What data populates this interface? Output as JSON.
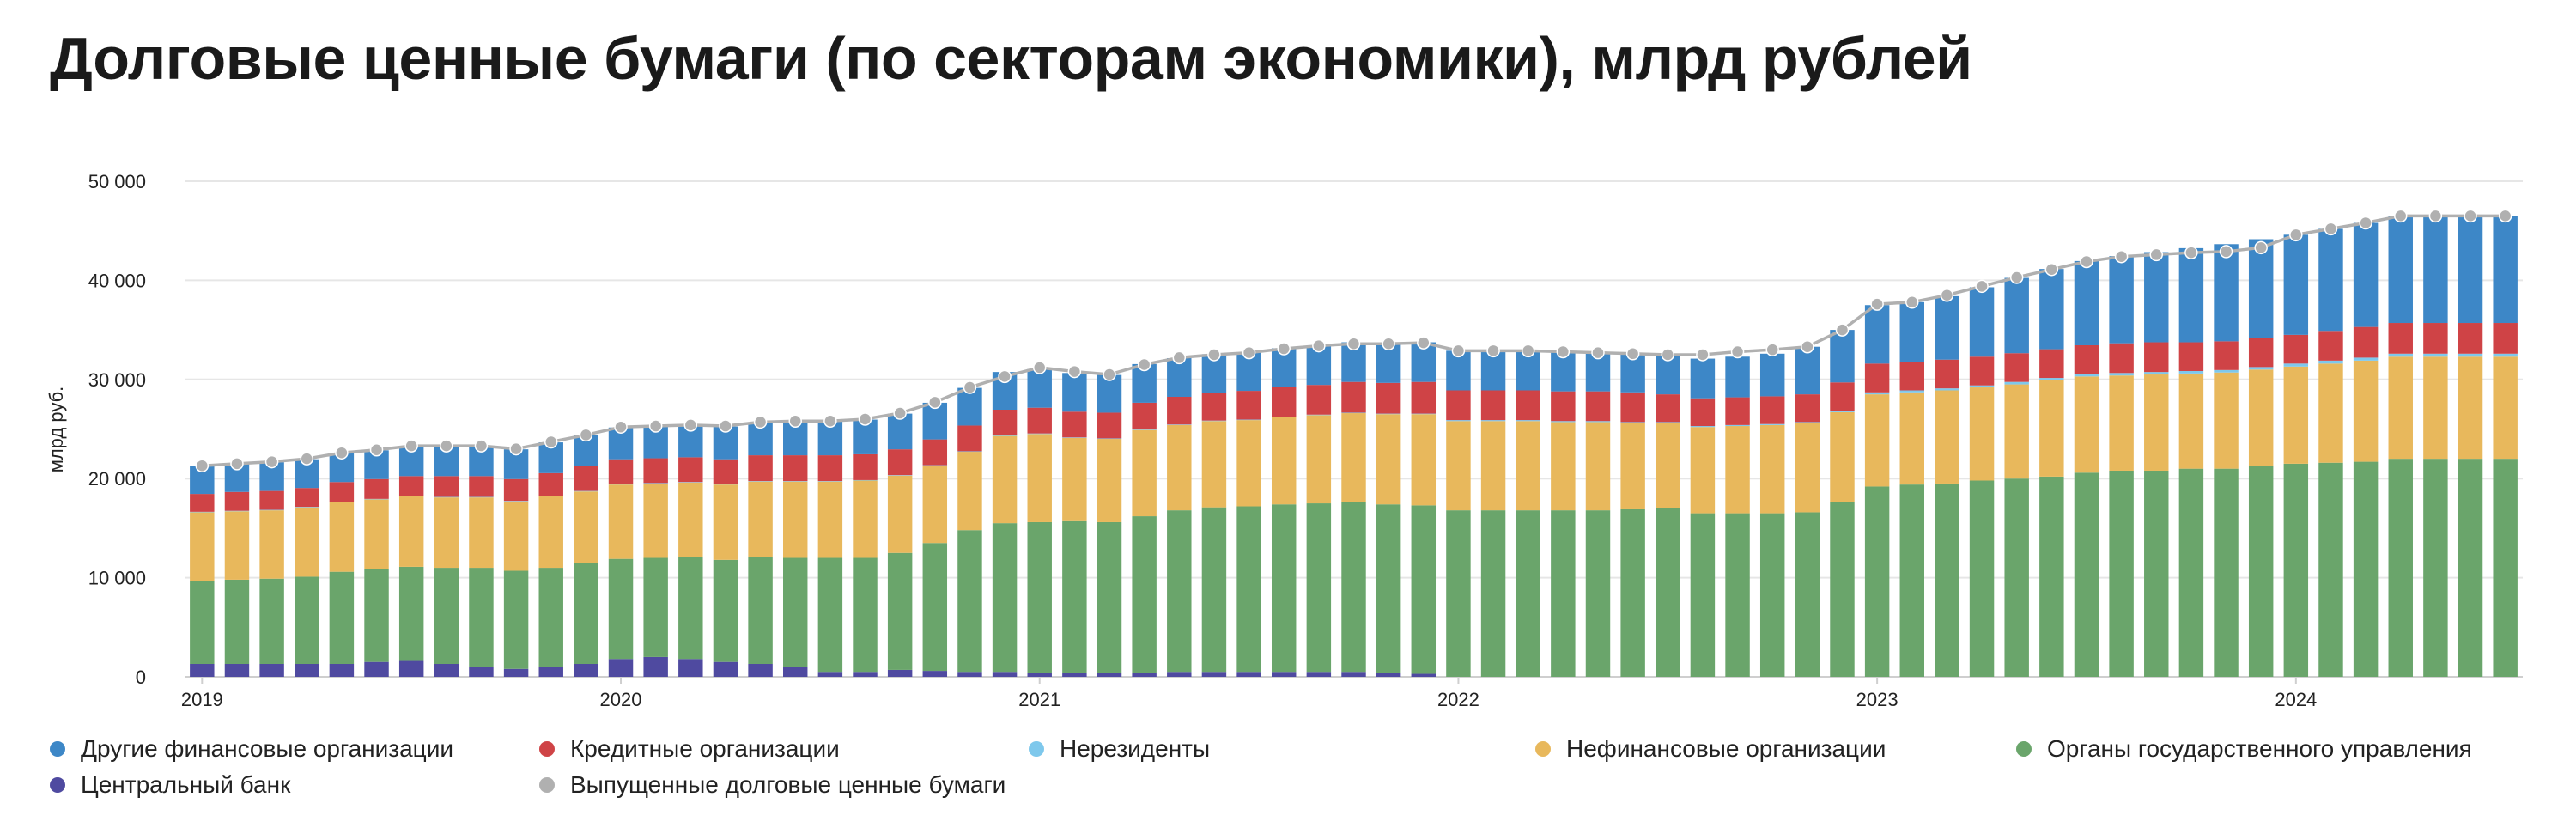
{
  "title": "Долговые ценные бумаги (по секторам экономики), млрд рублей",
  "colors": {
    "other_fin": "#3d87c7",
    "credit": "#cf4346",
    "nonres": "#7ec8ec",
    "nonfin": "#e8b85c",
    "gov": "#6aa56b",
    "cb": "#4f4aa0",
    "total": "#b0b0b0"
  },
  "chart_data": {
    "type": "bar",
    "stacked": true,
    "ylabel": "млрд руб.",
    "ylim": [
      0,
      50000
    ],
    "yticks": [
      "0",
      "10 000",
      "20 000",
      "30 000",
      "40 000",
      "50 000"
    ],
    "xtick_labels": [
      "2019",
      "2020",
      "2021",
      "2022",
      "2023",
      "2024"
    ],
    "x_start": "2019-01",
    "legend_position": "bottom",
    "grid": true,
    "series": [
      {
        "key": "cb",
        "name": "Центральный банк",
        "color": "#4f4aa0",
        "values": [
          1300,
          1300,
          1300,
          1300,
          1300,
          1500,
          1600,
          1300,
          1000,
          800,
          1000,
          1300,
          1800,
          2000,
          1800,
          1500,
          1300,
          1000,
          500,
          500,
          700,
          600,
          500,
          500,
          400,
          400,
          400,
          400,
          500,
          500,
          500,
          500,
          500,
          500,
          400,
          300,
          0,
          0,
          0,
          0,
          0,
          0,
          0,
          0,
          0,
          0,
          0,
          0,
          0,
          0,
          0,
          0,
          0,
          0,
          0,
          0,
          0,
          0,
          0,
          0,
          0,
          0,
          0,
          0,
          0,
          0,
          0
        ]
      },
      {
        "key": "gov",
        "name": "Органы государственного управления",
        "color": "#6aa56b",
        "values": [
          8400,
          8500,
          8600,
          8800,
          9300,
          9400,
          9500,
          9700,
          10000,
          9900,
          10000,
          10200,
          10100,
          10000,
          10300,
          10300,
          10800,
          11000,
          11500,
          11500,
          11800,
          12900,
          14300,
          15000,
          15200,
          15300,
          15200,
          15800,
          16300,
          16600,
          16700,
          16900,
          17000,
          17100,
          17000,
          17000,
          16800,
          16800,
          16800,
          16800,
          16800,
          16900,
          17000,
          16500,
          16500,
          16500,
          16600,
          17600,
          19200,
          19400,
          19500,
          19800,
          20000,
          20200,
          20600,
          20800,
          20800,
          21000,
          21000,
          21300,
          21500,
          21600,
          21700,
          22000,
          22000,
          22000,
          22000
        ]
      },
      {
        "key": "nonfin",
        "name": "Нефинансовые организации",
        "color": "#e8b85c",
        "values": [
          6900,
          6900,
          6900,
          7000,
          7000,
          7000,
          7100,
          7100,
          7100,
          7000,
          7200,
          7200,
          7500,
          7500,
          7500,
          7600,
          7600,
          7700,
          7700,
          7800,
          7800,
          7800,
          7900,
          8800,
          8900,
          8400,
          8400,
          8700,
          8600,
          8700,
          8700,
          8800,
          8900,
          9000,
          9100,
          9200,
          9000,
          9000,
          9000,
          8900,
          8900,
          8700,
          8600,
          8700,
          8800,
          8900,
          9000,
          9100,
          9300,
          9300,
          9400,
          9400,
          9500,
          9700,
          9700,
          9600,
          9700,
          9600,
          9700,
          9700,
          9800,
          10000,
          10200,
          10300,
          10300,
          10300,
          10300
        ]
      },
      {
        "key": "nonres",
        "name": "Нерезиденты",
        "color": "#7ec8ec",
        "values": [
          50,
          50,
          50,
          50,
          50,
          50,
          50,
          50,
          50,
          50,
          50,
          50,
          50,
          50,
          50,
          50,
          50,
          50,
          50,
          50,
          50,
          50,
          50,
          50,
          50,
          50,
          50,
          50,
          50,
          50,
          50,
          50,
          50,
          50,
          50,
          50,
          100,
          100,
          100,
          100,
          100,
          100,
          100,
          100,
          100,
          100,
          100,
          100,
          200,
          200,
          200,
          200,
          250,
          250,
          250,
          250,
          250,
          250,
          250,
          250,
          300,
          300,
          300,
          300,
          300,
          300,
          300
        ]
      },
      {
        "key": "credit",
        "name": "Кредитные организации",
        "color": "#cf4346",
        "values": [
          1800,
          1900,
          1900,
          1900,
          2000,
          2000,
          2000,
          2100,
          2100,
          2200,
          2300,
          2500,
          2500,
          2500,
          2500,
          2500,
          2600,
          2600,
          2600,
          2600,
          2600,
          2600,
          2600,
          2600,
          2600,
          2600,
          2600,
          2700,
          2800,
          2800,
          2900,
          3000,
          3000,
          3100,
          3100,
          3200,
          3000,
          3000,
          3000,
          3000,
          3000,
          3000,
          2800,
          2800,
          2800,
          2800,
          2800,
          2900,
          2900,
          2900,
          2900,
          2900,
          2900,
          2900,
          2900,
          3000,
          3000,
          2900,
          2900,
          2900,
          2900,
          3000,
          3100,
          3100,
          3100,
          3100,
          3100
        ]
      },
      {
        "key": "other_fin",
        "name": "Другие финансовые организации",
        "color": "#3d87c7",
        "values": [
          2800,
          2800,
          2900,
          2900,
          2900,
          2900,
          3000,
          3000,
          3000,
          3000,
          3100,
          3100,
          3200,
          3200,
          3200,
          3300,
          3300,
          3400,
          3400,
          3500,
          3600,
          3700,
          3800,
          3800,
          3900,
          3900,
          3800,
          3900,
          3900,
          3900,
          3900,
          3900,
          4000,
          4000,
          4000,
          4000,
          4000,
          4000,
          4000,
          4000,
          3900,
          3900,
          3900,
          4000,
          4100,
          4300,
          4800,
          5300,
          5900,
          6000,
          6400,
          7000,
          7600,
          8100,
          8500,
          8800,
          9100,
          9500,
          9800,
          10000,
          10100,
          10300,
          10500,
          10800,
          10800,
          10800,
          10800
        ]
      },
      {
        "key": "total",
        "name": "Выпущенные долговые ценные бумаги",
        "color": "#b0b0b0",
        "type": "line",
        "values": [
          21300,
          21500,
          21700,
          22000,
          22600,
          22900,
          23300,
          23300,
          23300,
          23000,
          23700,
          24400,
          25200,
          25300,
          25400,
          25300,
          25700,
          25800,
          25800,
          26000,
          26600,
          27700,
          29200,
          30300,
          31200,
          30800,
          30500,
          31500,
          32200,
          32500,
          32700,
          33100,
          33400,
          33600,
          33600,
          33700,
          32900,
          32900,
          32900,
          32800,
          32700,
          32600,
          32500,
          32500,
          32800,
          33000,
          33300,
          35000,
          37600,
          37800,
          38500,
          39400,
          40300,
          41100,
          41900,
          42400,
          42600,
          42800,
          42900,
          43300,
          44600,
          45200,
          45800,
          46500,
          46500,
          46500,
          46500
        ]
      }
    ]
  },
  "legend": {
    "items": [
      {
        "key": "other_fin",
        "label": "Другие финансовые организации",
        "color": "#3d87c7"
      },
      {
        "key": "credit",
        "label": "Кредитные организации",
        "color": "#cf4346"
      },
      {
        "key": "nonres",
        "label": "Нерезиденты",
        "color": "#7ec8ec"
      },
      {
        "key": "nonfin",
        "label": "Нефинансовые организации",
        "color": "#e8b85c"
      },
      {
        "key": "gov",
        "label": "Органы государственного управления",
        "color": "#6aa56b"
      },
      {
        "key": "cb",
        "label": "Центральный банк",
        "color": "#4f4aa0"
      },
      {
        "key": "total",
        "label": "Выпущенные долговые ценные бумаги",
        "color": "#b0b0b0"
      }
    ]
  }
}
